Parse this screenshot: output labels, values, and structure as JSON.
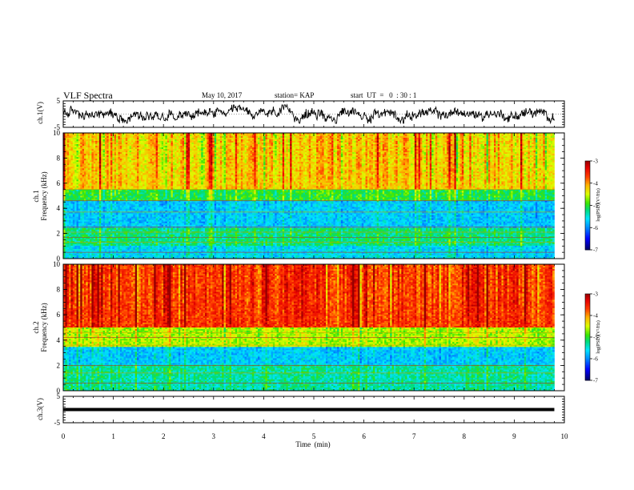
{
  "header": {
    "title": "VLF Spectra",
    "date": "May 10, 2017",
    "station": "station= KAP",
    "start_ut": "start  UT  =   0  : 30 : 1"
  },
  "chart_data": {
    "type": "heatmap",
    "x_axis": {
      "label": "Time  (min)",
      "lim": [
        0,
        10
      ],
      "ticks": [
        "0",
        "1",
        "2",
        "3",
        "4",
        "5",
        "6",
        "7",
        "8",
        "9",
        "10"
      ]
    },
    "panels": [
      {
        "id": "ch1-waveform",
        "type": "line",
        "ylabel": "ch.1(V)",
        "ylim": [
          -5,
          5
        ],
        "yticks": [
          "5",
          "-5"
        ],
        "data_extent_min": 9.8,
        "description_series": "ch.1 voltage waveform, noisy signal roughly between -3 and 3 V"
      },
      {
        "id": "ch1-spectrogram",
        "type": "heatmap",
        "ylabel": "ch.1\nFrequency  (kHz)",
        "ylabel_line1": "ch.1",
        "ylabel_line2": "Frequency  (kHz)",
        "ylim": [
          0,
          10
        ],
        "yticks": [
          "0",
          "2",
          "4",
          "6",
          "8",
          "10"
        ],
        "data_extent_min": 9.8,
        "bands_khz": [
          {
            "from": 5.5,
            "to": 10,
            "level": -4.2
          },
          {
            "from": 4.6,
            "to": 5.5,
            "level": -5.0
          },
          {
            "from": 2.5,
            "to": 4.6,
            "level": -5.7
          },
          {
            "from": 1.0,
            "to": 2.5,
            "level": -5.2
          },
          {
            "from": 0.0,
            "to": 1.0,
            "level": -5.6
          }
        ],
        "lines_khz": [
          5.5,
          4.6,
          3.7,
          2.5,
          2.1,
          1.7,
          1.3,
          0.5
        ],
        "colorbar": {
          "label": "log(PSD)(V²/Hz)",
          "range": [
            -7,
            -3
          ],
          "ticks": [
            "-3",
            "-4",
            "-5",
            "-6",
            "-7"
          ]
        }
      },
      {
        "id": "ch2-spectrogram",
        "type": "heatmap",
        "ylabel": "ch.2\nFrequency  (kHz)",
        "ylabel_line1": "ch.2",
        "ylabel_line2": "Frequency  (kHz)",
        "ylim": [
          0,
          10
        ],
        "yticks": [
          "0",
          "2",
          "4",
          "6",
          "8",
          "10"
        ],
        "data_extent_min": 9.8,
        "bands_khz": [
          {
            "from": 5.0,
            "to": 10,
            "level": -3.6
          },
          {
            "from": 3.5,
            "to": 5.0,
            "level": -4.6
          },
          {
            "from": 2.0,
            "to": 3.5,
            "level": -5.7
          },
          {
            "from": 0.0,
            "to": 2.0,
            "level": -5.3
          }
        ],
        "lines_khz": [
          4.6,
          4.2,
          3.6,
          2.0,
          1.4,
          0.6
        ],
        "colorbar": {
          "label": "log(PSD)(V²/Hz)",
          "range": [
            -7,
            -3
          ],
          "ticks": [
            "-3",
            "-4",
            "-5",
            "-6",
            "-7"
          ]
        }
      },
      {
        "id": "ch3-waveform",
        "type": "line",
        "ylabel": "ch.3(V)",
        "ylim": [
          -5,
          5
        ],
        "yticks": [
          "5",
          "-5"
        ],
        "data_extent_min": 9.8,
        "constant_value": 0
      }
    ]
  },
  "colors": {
    "dark_red": "#9b0000",
    "red": "#ff0000",
    "orange": "#ff9900",
    "yellow": "#ffff00",
    "green": "#00dd00",
    "cyan": "#00ddff",
    "blue": "#0000ff",
    "navy": "#000066"
  }
}
